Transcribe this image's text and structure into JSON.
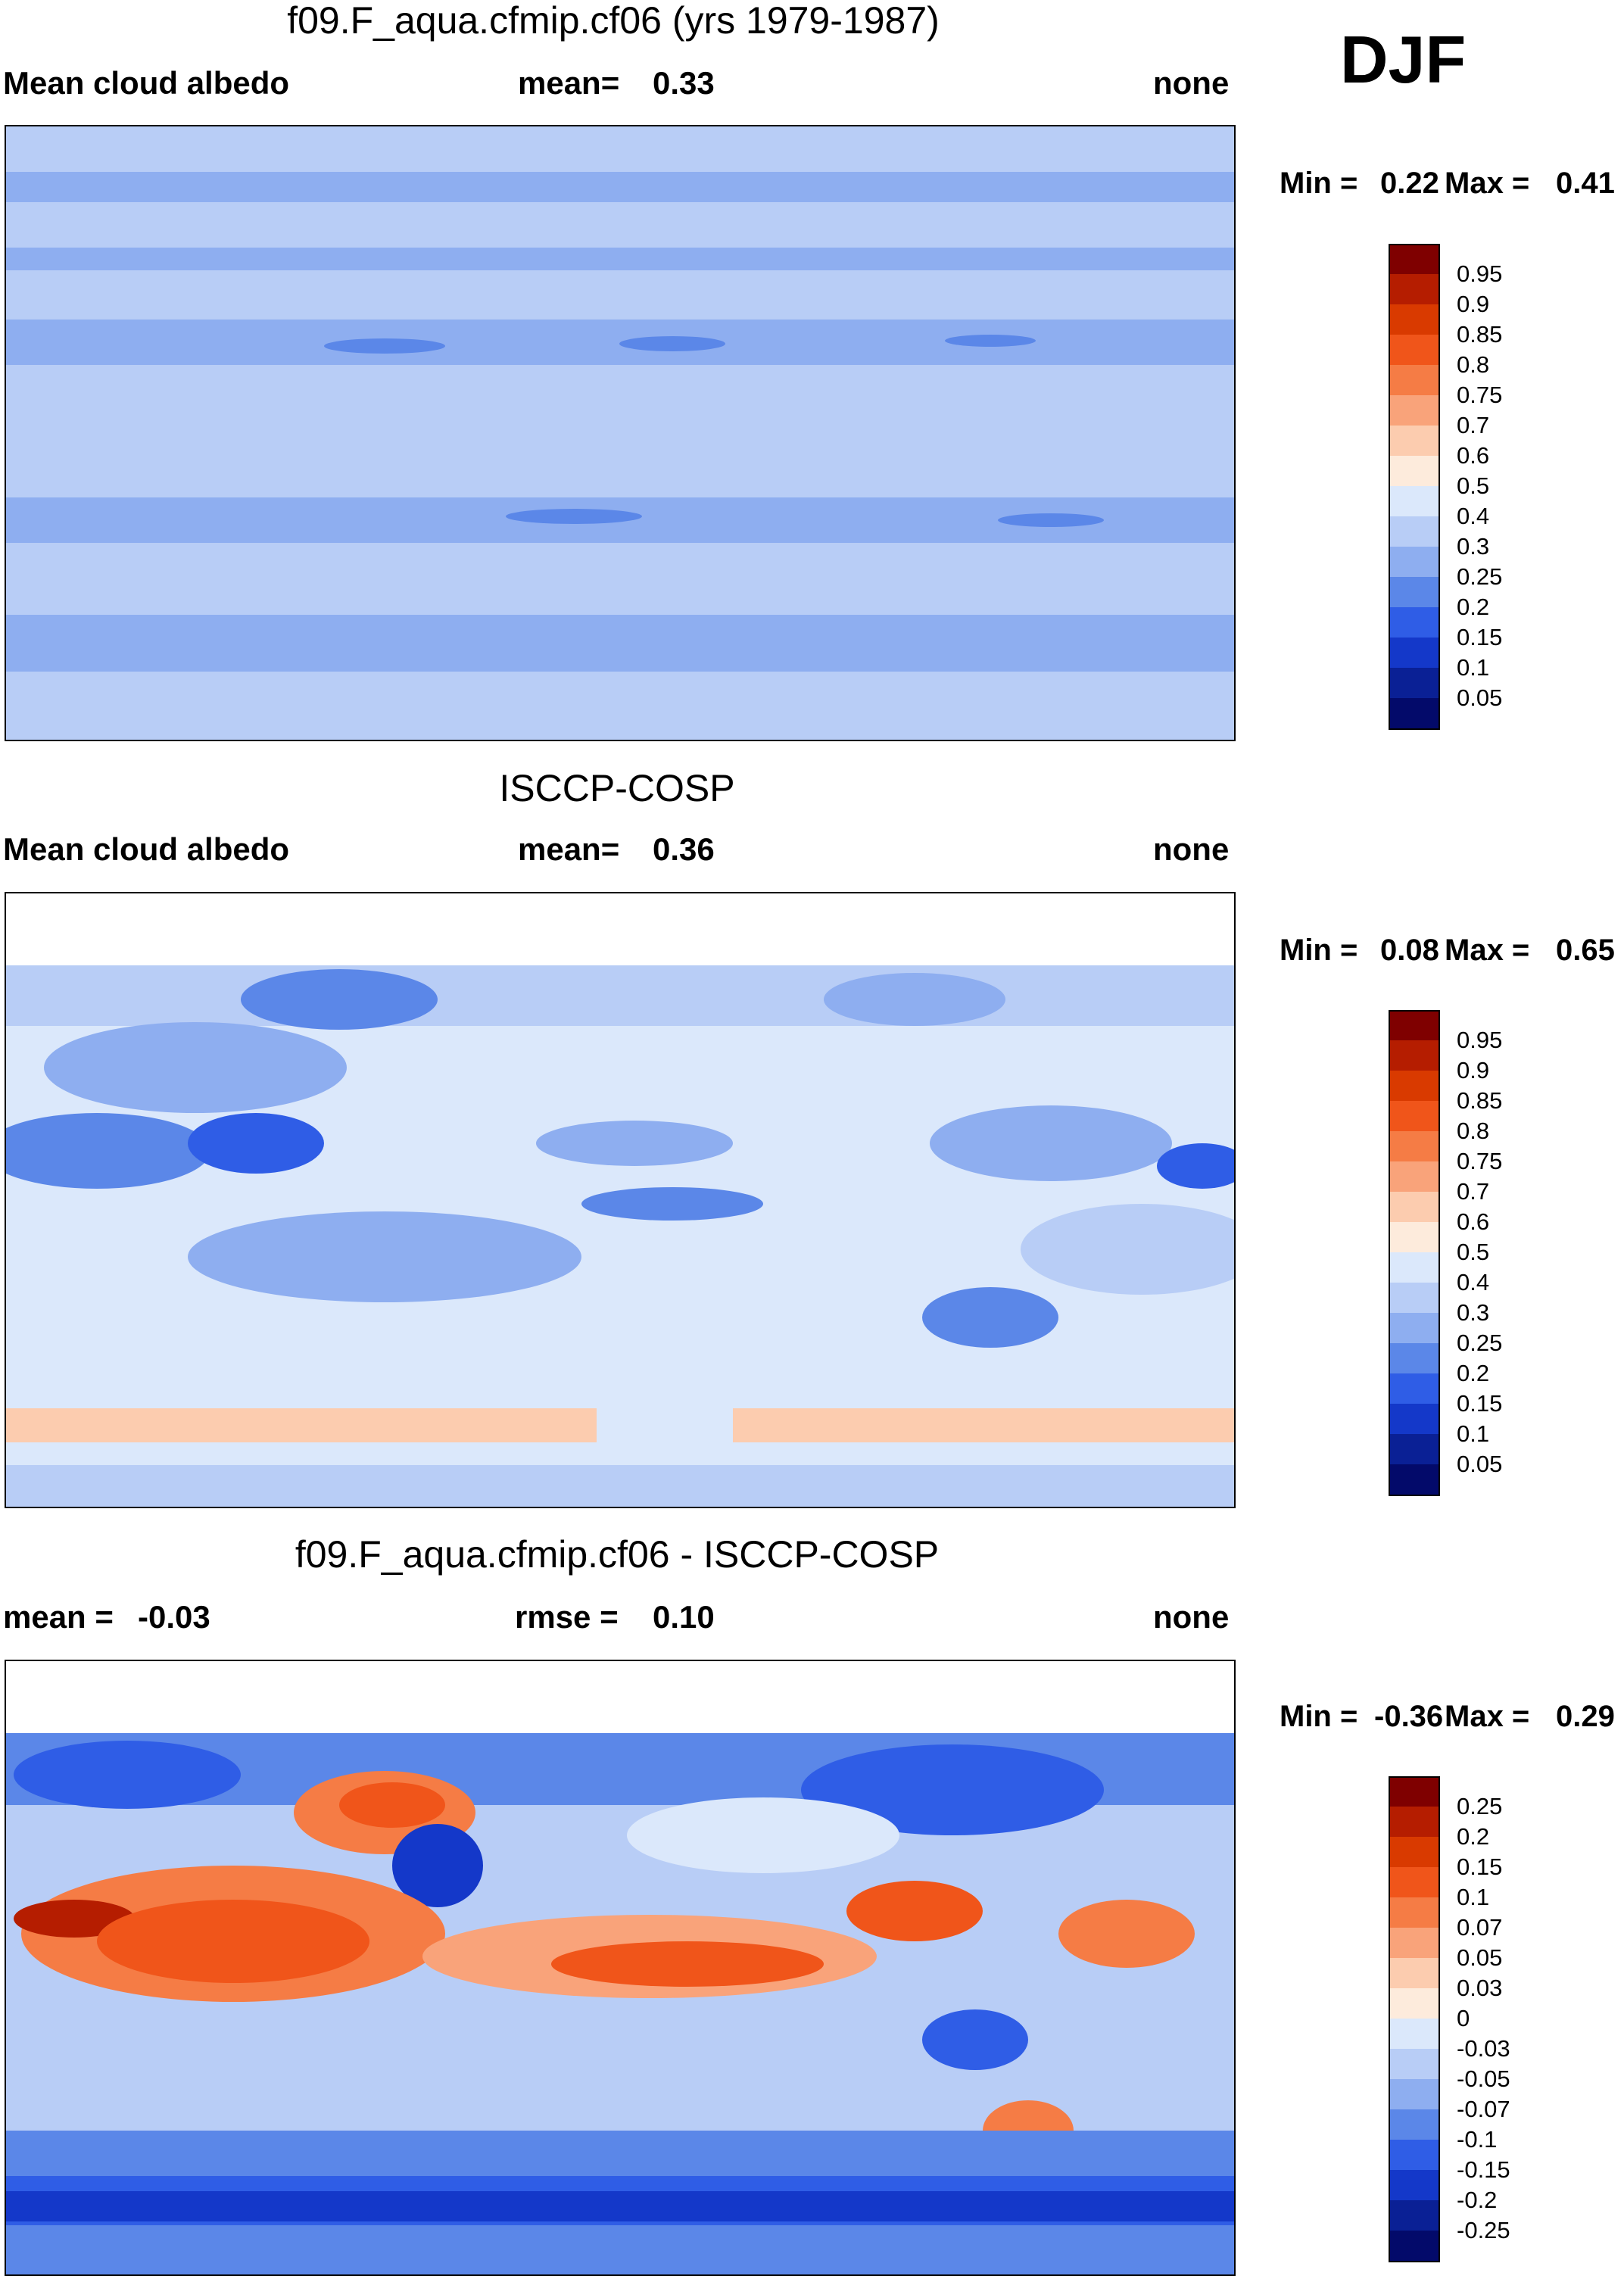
{
  "season": "DJF",
  "panels": [
    {
      "title": "f09.F_aqua.cfmip.cf06 (yrs 1979-1987)",
      "left_label": "Mean cloud albedo",
      "stat_label": "mean=",
      "stat_value": "0.33",
      "right_label": "none",
      "min_label": "Min =",
      "min_value": "0.22",
      "max_label": "Max =",
      "max_value": "0.41",
      "colorbar_labels": [
        "0.95",
        "0.9",
        "0.85",
        "0.8",
        "0.75",
        "0.7",
        "0.6",
        "0.5",
        "0.4",
        "0.3",
        "0.25",
        "0.2",
        "0.15",
        "0.1",
        "0.05"
      ]
    },
    {
      "title": "ISCCP-COSP",
      "left_label": "Mean cloud albedo",
      "stat_label": "mean=",
      "stat_value": "0.36",
      "right_label": "none",
      "min_label": "Min =",
      "min_value": "0.08",
      "max_label": "Max =",
      "max_value": "0.65",
      "colorbar_labels": [
        "0.95",
        "0.9",
        "0.85",
        "0.8",
        "0.75",
        "0.7",
        "0.6",
        "0.5",
        "0.4",
        "0.3",
        "0.25",
        "0.2",
        "0.15",
        "0.1",
        "0.05"
      ]
    },
    {
      "title": "f09.F_aqua.cfmip.cf06 - ISCCP-COSP",
      "left_label": "mean =",
      "left_value": "-0.03",
      "stat_label": "rmse =",
      "stat_value": "0.10",
      "right_label": "none",
      "min_label": "Min =",
      "min_value": "-0.36",
      "max_label": "Max =",
      "max_value": "0.29",
      "colorbar_labels": [
        "0.25",
        "0.2",
        "0.15",
        "0.1",
        "0.07",
        "0.05",
        "0.03",
        "0",
        "-0.03",
        "-0.05",
        "-0.07",
        "-0.1",
        "-0.15",
        "-0.2",
        "-0.25"
      ]
    }
  ],
  "colors": {
    "albedo_scale": [
      "#7f0000",
      "#b51d00",
      "#d93a00",
      "#f0551a",
      "#f57c45",
      "#f9a37a",
      "#fcccaf",
      "#fdebdc",
      "#dbe8fb",
      "#b8cdf6",
      "#8eaef0",
      "#5b87e8",
      "#2f5de6",
      "#1438c9",
      "#0a2095",
      "#030a6a"
    ],
    "diff_scale": [
      "#7f0000",
      "#b51d00",
      "#d93a00",
      "#f0551a",
      "#f57c45",
      "#f9a37a",
      "#fcccaf",
      "#fdebdc",
      "#dbe8fb",
      "#b8cdf6",
      "#8eaef0",
      "#5b87e8",
      "#2f5de6",
      "#1438c9",
      "#0a2095",
      "#030a6a"
    ]
  }
}
